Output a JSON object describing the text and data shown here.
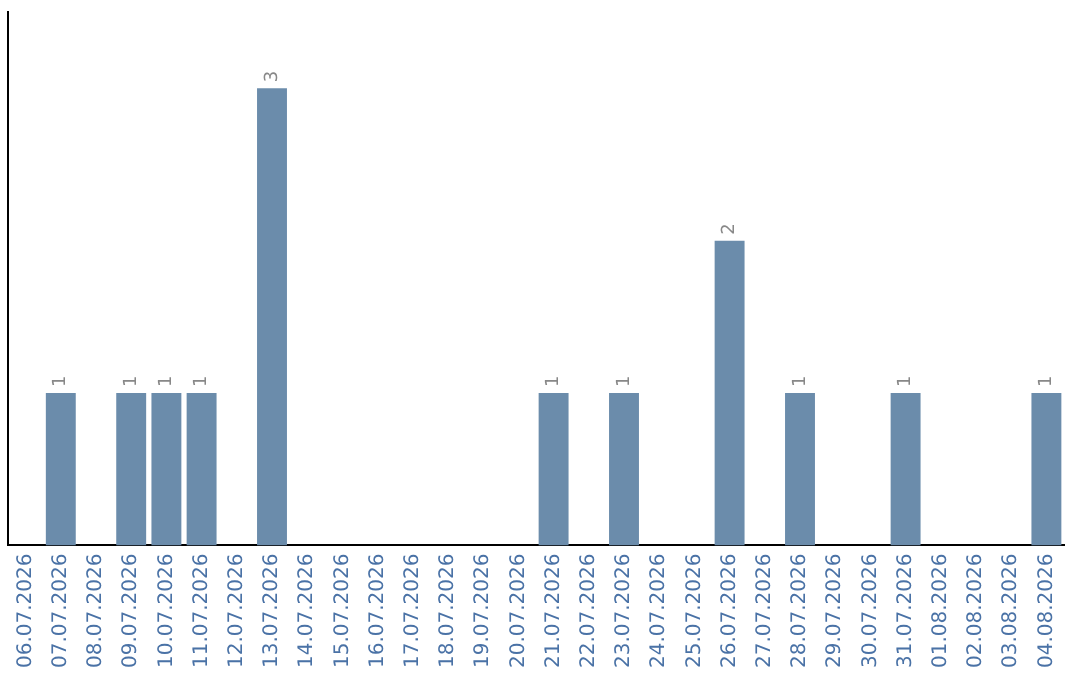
{
  "chart_data": {
    "type": "bar",
    "categories": [
      "06.07.2026",
      "07.07.2026",
      "08.07.2026",
      "09.07.2026",
      "10.07.2026",
      "11.07.2026",
      "12.07.2026",
      "13.07.2026",
      "14.07.2026",
      "15.07.2026",
      "16.07.2026",
      "17.07.2026",
      "18.07.2026",
      "19.07.2026",
      "20.07.2026",
      "21.07.2026",
      "22.07.2026",
      "23.07.2026",
      "24.07.2026",
      "25.07.2026",
      "26.07.2026",
      "27.07.2026",
      "28.07.2026",
      "29.07.2026",
      "30.07.2026",
      "31.07.2026",
      "01.08.2026",
      "02.08.2026",
      "03.08.2026",
      "04.08.2026"
    ],
    "values": [
      0,
      1,
      0,
      1,
      1,
      1,
      0,
      3,
      0,
      0,
      0,
      0,
      0,
      0,
      0,
      1,
      0,
      1,
      0,
      0,
      2,
      0,
      1,
      0,
      0,
      1,
      0,
      0,
      0,
      1
    ],
    "value_labels": [
      null,
      "1",
      null,
      "1",
      "1",
      "1",
      null,
      "3",
      null,
      null,
      null,
      null,
      null,
      null,
      null,
      "1",
      null,
      "1",
      null,
      null,
      "2",
      null,
      "1",
      null,
      null,
      "1",
      null,
      null,
      null,
      "1"
    ],
    "color": "#6b8cab",
    "grid": false,
    "legend": false,
    "tick_labels": "x"
  }
}
